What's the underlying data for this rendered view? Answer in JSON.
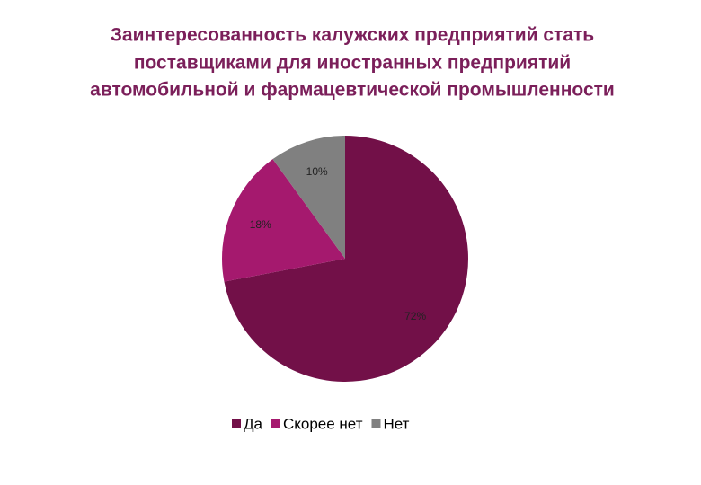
{
  "chart_data": {
    "type": "pie",
    "title": [
      "Заинтересованность калужских предприятий стать",
      "поставщиками для иностранных предприятий",
      "автомобильной и фармацевтической промышленности"
    ],
    "categories": [
      "Да",
      "Скорее нет",
      "Нет"
    ],
    "values": [
      72,
      18,
      10
    ],
    "value_labels": [
      "72%",
      "18%",
      "10%"
    ],
    "colors": [
      "#721048",
      "#a5196e",
      "#808080"
    ],
    "legend": "bottom"
  }
}
